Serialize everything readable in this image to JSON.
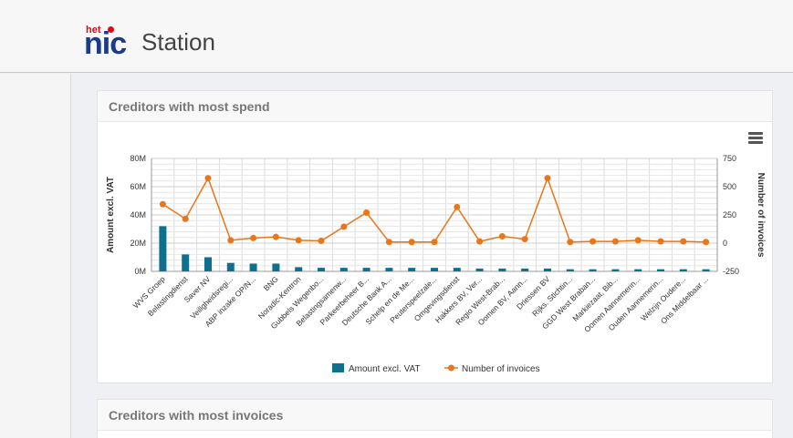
{
  "header": {
    "logo_small": "het",
    "logo_big": "nic",
    "title": "Station"
  },
  "panels": [
    {
      "title": "Creditors with most spend"
    },
    {
      "title": "Creditors with most invoices"
    }
  ],
  "icons": {
    "chart_menu": "hamburger-menu-icon"
  },
  "colors": {
    "bar": "#0f6f8e",
    "line": "#e8761a"
  },
  "chart_data": {
    "type": "bar",
    "categories": [
      "WVS Groep",
      "Belastingdienst",
      "Saver NV",
      "Veiligheidsregi...",
      "ABP inzake OP/N...",
      "BNG",
      "Noradic-Kentron",
      "Gubbels Wegenbo...",
      "Belastingsamenw...",
      "Parkeerbeheer B...",
      "Deutsche Bank A...",
      "Schelp en de Me...",
      "Peuterspeelzale...",
      "Omgevingsdienst",
      "Hakkers BV, Ver...",
      "Regio West-Brab...",
      "Oomen BV, Aann...",
      "Driessen BV",
      "Rijks. Stichtin...",
      "GGD West Braban...",
      "Markiezaat, Bib...",
      "Oomen Aannemerin...",
      "Ouden Aannemerin...",
      "Welzijn Oudere...",
      "Ons Middelbaar ..."
    ],
    "series": [
      {
        "name": "Amount excl. VAT",
        "type": "bar",
        "axis": "left",
        "values": [
          32,
          12,
          10,
          6,
          5.5,
          5.5,
          3,
          2.5,
          2.5,
          2.5,
          2.5,
          2.5,
          2.5,
          2.5,
          2,
          2,
          2,
          2,
          1.5,
          1.5,
          1.5,
          1.5,
          1.5,
          1.5,
          1.5
        ]
      },
      {
        "name": "Number of invoices",
        "type": "line",
        "axis": "right",
        "values": [
          345,
          215,
          575,
          25,
          45,
          55,
          25,
          20,
          145,
          270,
          10,
          10,
          10,
          320,
          15,
          60,
          35,
          575,
          10,
          15,
          15,
          25,
          15,
          15,
          10
        ]
      }
    ],
    "left_axis": {
      "label": "Amount excl. VAT",
      "ticks": [
        "0M",
        "20M",
        "40M",
        "60M",
        "80M"
      ],
      "range": [
        0,
        80
      ]
    },
    "right_axis": {
      "label": "Number of invoices",
      "ticks": [
        "-250",
        "0",
        "250",
        "500",
        "750"
      ],
      "range": [
        -250,
        750
      ]
    },
    "grid": true,
    "legend": {
      "placement": "bottom",
      "items": [
        "Amount excl. VAT",
        "Number of invoices"
      ]
    }
  }
}
